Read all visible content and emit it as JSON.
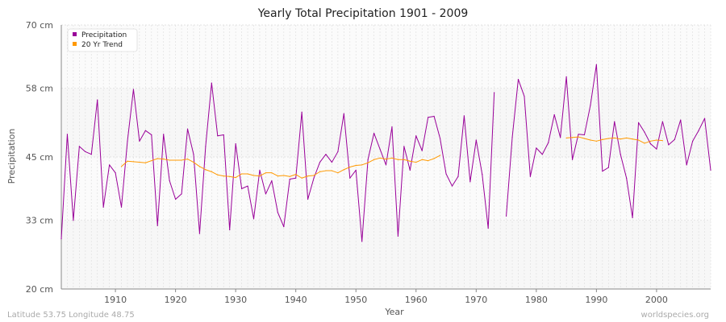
{
  "chart_data": {
    "type": "line",
    "title": "Yearly Total Precipitation 1901 - 2009",
    "xlabel": "Year",
    "ylabel": "Precipitation",
    "xlim": [
      1901,
      2009
    ],
    "ylim": [
      20,
      70
    ],
    "y_ticks": [
      {
        "value": 20,
        "label": "20 cm"
      },
      {
        "value": 33,
        "label": "33 cm"
      },
      {
        "value": 45,
        "label": "45 cm"
      },
      {
        "value": 58,
        "label": "58 cm"
      },
      {
        "value": 70,
        "label": "70 cm"
      }
    ],
    "x_ticks": [
      1910,
      1920,
      1930,
      1940,
      1950,
      1960,
      1970,
      1980,
      1990,
      2000
    ],
    "grid": true,
    "legend_position": "top-left",
    "series": [
      {
        "name": "Precipitation",
        "color": "#990099",
        "x_start": 1901,
        "values": [
          29.5,
          49.3,
          33.0,
          47.0,
          46.0,
          45.5,
          55.8,
          35.5,
          43.5,
          42.0,
          35.5,
          48.0,
          57.8,
          48.0,
          50.0,
          49.2,
          32.0,
          49.3,
          40.5,
          37.0,
          38.0,
          50.3,
          45.5,
          30.5,
          47.0,
          59.0,
          49.0,
          49.2,
          31.2,
          47.5,
          39.0,
          39.5,
          33.3,
          42.5,
          38.0,
          40.5,
          34.5,
          31.8,
          40.8,
          41.0,
          53.5,
          37.0,
          41.0,
          44.0,
          45.5,
          44.0,
          46.0,
          53.2,
          41.0,
          42.5,
          29.0,
          44.5,
          49.5,
          46.5,
          43.5,
          50.7,
          30.0,
          47.0,
          42.5,
          49.0,
          46.2,
          52.5,
          52.7,
          48.5,
          41.8,
          39.5,
          41.3,
          52.8,
          40.3,
          48.2,
          41.7,
          31.5,
          57.2,
          null,
          33.8,
          48.7,
          59.7,
          56.5,
          41.3,
          46.7,
          45.5,
          47.7,
          53.0,
          48.7,
          60.2,
          44.5,
          49.3,
          49.2,
          54.8,
          62.5,
          42.3,
          43.0,
          51.7,
          45.5,
          41.0,
          33.5,
          51.5,
          49.7,
          47.5,
          46.5,
          51.7,
          47.3,
          48.3,
          52.0,
          43.5,
          48.0,
          50.0,
          52.3,
          42.5
        ]
      },
      {
        "name": "20 Yr Trend",
        "color": "#ff9900",
        "x_start": 1911,
        "values": [
          43.2,
          44.2,
          44.1,
          44.0,
          43.9,
          44.3,
          44.7,
          44.6,
          44.4,
          44.4,
          44.4,
          44.6,
          44.0,
          43.2,
          42.6,
          42.2,
          41.6,
          41.4,
          41.3,
          41.1,
          41.8,
          41.8,
          41.5,
          41.4,
          42.0,
          42.0,
          41.4,
          41.5,
          41.3,
          41.7,
          41.0,
          41.4,
          41.5,
          42.2,
          42.4,
          42.4,
          42.0,
          42.6,
          43.1,
          43.4,
          43.5,
          43.9,
          44.5,
          44.8,
          44.6,
          44.8,
          44.5,
          44.5,
          44.2,
          44.0,
          44.5,
          44.3,
          44.7,
          45.3,
          null,
          null,
          null,
          null,
          null,
          null,
          null,
          null,
          null,
          null,
          null,
          null,
          null,
          null,
          null,
          null,
          null,
          null,
          null,
          null,
          48.6,
          48.7,
          48.8,
          48.5,
          48.2,
          48.0,
          48.3,
          48.5,
          48.6,
          48.4,
          48.6,
          48.4,
          48.2,
          47.6,
          48.0,
          48.2,
          48.1
        ]
      }
    ]
  },
  "footer": {
    "left": "Latitude 53.75 Longitude 48.75",
    "right": "worldspecies.org"
  }
}
